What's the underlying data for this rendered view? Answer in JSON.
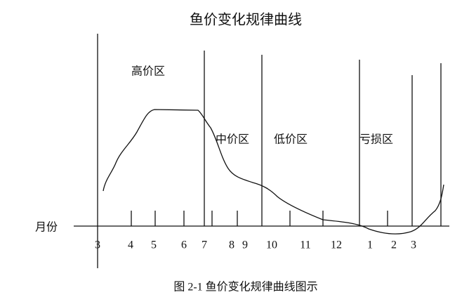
{
  "title": "鱼价变化规律曲线",
  "regions": [
    "高价区",
    "中价区",
    "低价区",
    "亏损区"
  ],
  "axis_label": "月份",
  "months": [
    "3",
    "4",
    "5",
    "6",
    "7",
    "8",
    "9",
    "10",
    "11",
    "12",
    "1",
    "2",
    "3"
  ],
  "caption": "图  2-1  鱼价变化规律曲线图示"
}
